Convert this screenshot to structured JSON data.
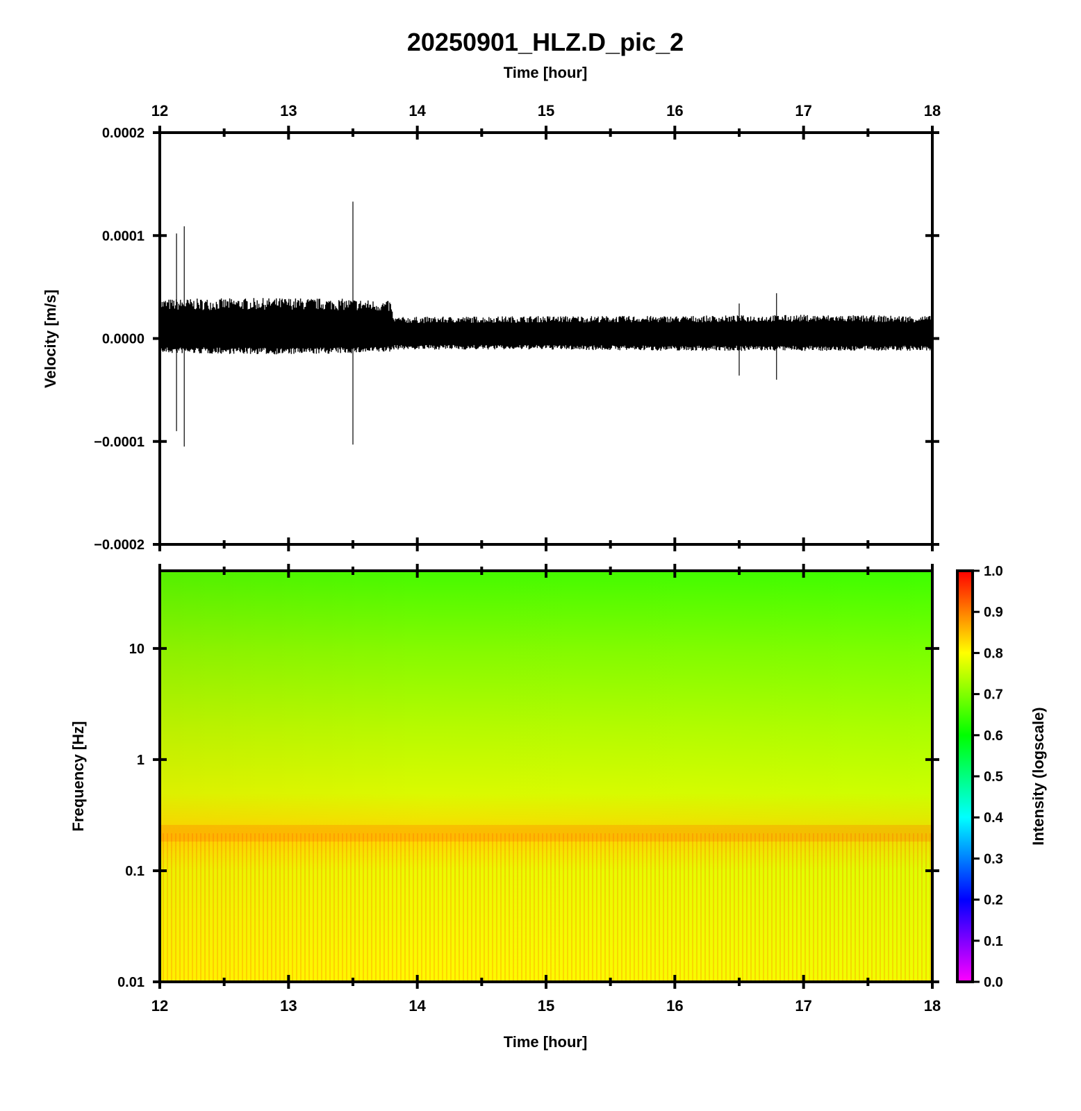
{
  "title": "20250901_HLZ.D_pic_2",
  "colors": {
    "axis": "#000000",
    "trace": "#000000",
    "background": "#ffffff"
  },
  "chart_data": [
    {
      "type": "line",
      "panel": "waveform",
      "top_xlabel": "Time [hour]",
      "ylabel": "Velocity [m/s]",
      "xlim": [
        12,
        18
      ],
      "ylim": [
        -0.0002,
        0.0002
      ],
      "x_ticks": [
        "12",
        "13",
        "14",
        "15",
        "16",
        "17",
        "18"
      ],
      "x_tick_values": [
        12,
        13,
        14,
        15,
        16,
        17,
        18
      ],
      "y_ticks": [
        "0.0002",
        "0.0001",
        "0.0000",
        "−0.0001",
        "−0.0002"
      ],
      "y_tick_values": [
        0.0002,
        0.0001,
        0.0,
        -0.0001,
        -0.0002
      ],
      "grid": false,
      "series": [
        {
          "envelope_upper": [
            [
              12.0,
              3.5e-05
            ],
            [
              13.0,
              3.6e-05
            ],
            [
              13.5,
              3.5e-05
            ],
            [
              13.8,
              3.3e-05
            ],
            [
              13.81,
              1.9e-05
            ],
            [
              15.0,
              2e-05
            ],
            [
              16.0,
              2e-05
            ],
            [
              17.0,
              2.1e-05
            ],
            [
              18.0,
              2e-05
            ]
          ],
          "envelope_lower": [
            [
              12.0,
              -1.2e-05
            ],
            [
              13.0,
              -1.3e-05
            ],
            [
              13.5,
              -1.2e-05
            ],
            [
              13.8,
              -1.1e-05
            ],
            [
              13.81,
              -9e-06
            ],
            [
              15.0,
              -9e-06
            ],
            [
              16.0,
              -1e-05
            ],
            [
              17.0,
              -1e-05
            ],
            [
              18.0,
              -1e-05
            ]
          ],
          "spikes": [
            {
              "x": 12.13,
              "max": 0.000102,
              "min": -9e-05
            },
            {
              "x": 12.19,
              "max": 0.000109,
              "min": -0.000105
            },
            {
              "x": 13.5,
              "max": 0.000133,
              "min": -0.000103
            },
            {
              "x": 16.5,
              "max": 3.4e-05,
              "min": -3.6e-05
            },
            {
              "x": 16.79,
              "max": 4.4e-05,
              "min": -4e-05
            }
          ]
        }
      ]
    },
    {
      "type": "heatmap",
      "panel": "spectrogram",
      "xlabel": "Time [hour]",
      "ylabel": "Frequency [Hz]",
      "xlim": [
        12,
        18
      ],
      "ylim": [
        0.01,
        50
      ],
      "yscale": "log",
      "x_ticks": [
        "12",
        "13",
        "14",
        "15",
        "16",
        "17",
        "18"
      ],
      "x_tick_values": [
        12,
        13,
        14,
        15,
        16,
        17,
        18
      ],
      "y_ticks": [
        "10",
        "1",
        "0.1",
        "0.01"
      ],
      "y_tick_values": [
        10,
        1,
        0.1,
        0.01
      ],
      "colorbar": {
        "label": "Intensity (logscale)",
        "range": [
          0.0,
          1.0
        ],
        "ticks": [
          "1.0",
          "0.9",
          "0.8",
          "0.7",
          "0.6",
          "0.5",
          "0.4",
          "0.3",
          "0.2",
          "0.1",
          "0.0"
        ],
        "tick_values": [
          1.0,
          0.9,
          0.8,
          0.7,
          0.6,
          0.5,
          0.4,
          0.3,
          0.2,
          0.1,
          0.0
        ],
        "colormap": [
          "#ff00ff",
          "#8000ff",
          "#0000ff",
          "#0080ff",
          "#00ffff",
          "#00ff80",
          "#00ff00",
          "#80ff00",
          "#ffff00",
          "#ff8000",
          "#ff0000"
        ]
      },
      "intensity_profile": [
        {
          "freq": 50,
          "early": 0.66,
          "late": 0.64
        },
        {
          "freq": 10,
          "early": 0.72,
          "late": 0.68
        },
        {
          "freq": 2,
          "early": 0.76,
          "late": 0.72
        },
        {
          "freq": 0.5,
          "early": 0.79,
          "late": 0.75
        },
        {
          "freq": 0.2,
          "early": 0.86,
          "late": 0.8
        },
        {
          "freq": 0.1,
          "early": 0.8,
          "late": 0.77
        },
        {
          "freq": 0.01,
          "early": 0.82,
          "late": 0.78
        }
      ]
    }
  ]
}
